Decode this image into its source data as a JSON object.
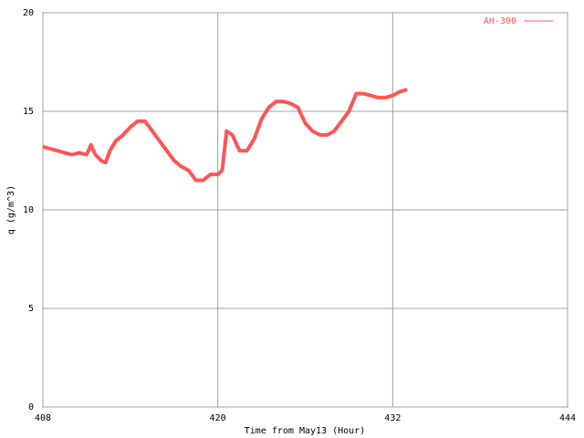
{
  "chart_data": {
    "type": "line",
    "x_label": "Time from May13 (Hour)",
    "y_label": "q (g/m^3)",
    "xlim": [
      408,
      444
    ],
    "xticks": [
      408,
      420,
      432,
      444
    ],
    "ylim": [
      0,
      20
    ],
    "yticks": [
      0,
      5,
      10,
      15,
      20
    ],
    "grid": true,
    "legend": "top-right",
    "x": [
      408.0,
      408.5,
      409.0,
      409.5,
      410.0,
      410.5,
      411.0,
      411.3,
      411.6,
      412.0,
      412.3,
      412.6,
      413.0,
      413.5,
      414.0,
      414.5,
      415.0,
      415.5,
      416.0,
      416.5,
      417.0,
      417.5,
      418.0,
      418.5,
      419.0,
      419.5,
      420.0,
      420.3,
      420.6,
      421.0,
      421.5,
      422.0,
      422.5,
      423.0,
      423.5,
      424.0,
      424.5,
      425.0,
      425.5,
      426.0,
      426.5,
      427.0,
      427.5,
      428.0,
      428.5,
      429.0,
      429.5,
      430.0,
      430.5,
      431.0,
      431.5,
      432.0,
      432.5,
      433.0
    ],
    "series": [
      {
        "name": "AH-300",
        "color": "#ff5555",
        "values": [
          13.2,
          13.1,
          13.0,
          12.9,
          12.8,
          12.9,
          12.8,
          13.3,
          12.8,
          12.5,
          12.4,
          13.0,
          13.5,
          13.8,
          14.2,
          14.5,
          14.5,
          14.0,
          13.5,
          13.0,
          12.5,
          12.2,
          12.0,
          11.5,
          11.5,
          11.8,
          11.8,
          12.0,
          14.0,
          13.8,
          13.0,
          13.0,
          13.6,
          14.6,
          15.2,
          15.5,
          15.5,
          15.4,
          15.2,
          14.4,
          14.0,
          13.8,
          13.8,
          14.0,
          14.5,
          15.0,
          15.9,
          15.9,
          15.8,
          15.7,
          15.7,
          15.8,
          16.0,
          16.1
        ]
      }
    ]
  }
}
